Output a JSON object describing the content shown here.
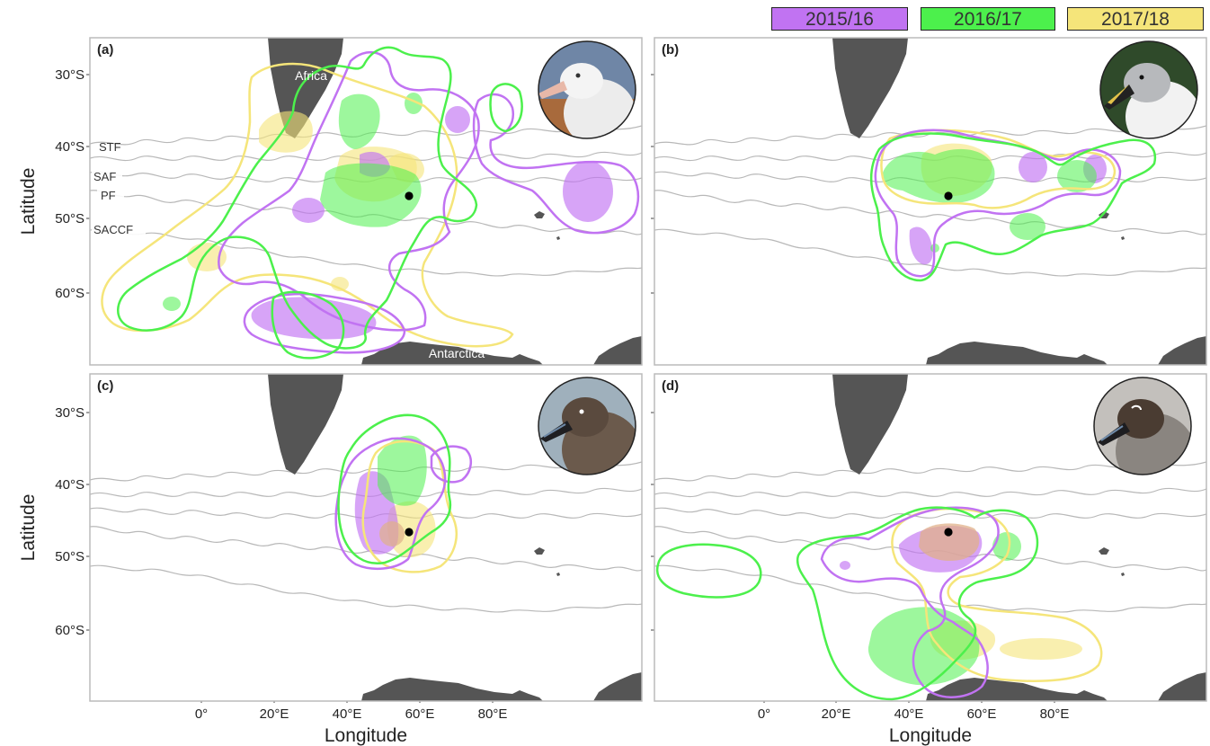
{
  "legend": {
    "items": [
      {
        "label": "2015/16",
        "color": "#c173f2"
      },
      {
        "label": "2016/17",
        "color": "#4cf04c"
      },
      {
        "label": "2017/18",
        "color": "#f5e57a"
      }
    ]
  },
  "axes": {
    "ylabel": "Latitude",
    "xlabel": "Longitude",
    "lat_ticks": [
      "30°S",
      "40°S",
      "50°S",
      "60°S"
    ],
    "lon_ticks": [
      "0°",
      "20°E",
      "40°E",
      "60°E",
      "80°E"
    ]
  },
  "map_labels": {
    "africa": "Africa",
    "antarctica": "Antarctica",
    "fronts": [
      "STF",
      "SAF",
      "PF",
      "SACCF"
    ]
  },
  "panels": [
    {
      "id": "a",
      "label": "(a)",
      "photo": "albatross-photo-white"
    },
    {
      "id": "b",
      "label": "(b)",
      "photo": "albatross-photo-grey-headed"
    },
    {
      "id": "c",
      "label": "(c)",
      "photo": "albatross-photo-sooty"
    },
    {
      "id": "d",
      "label": "(d)",
      "photo": "albatross-photo-light-mantled"
    }
  ],
  "colors": {
    "land": "#555555",
    "front_line": "#b8b8b8",
    "colony": "#000000"
  }
}
